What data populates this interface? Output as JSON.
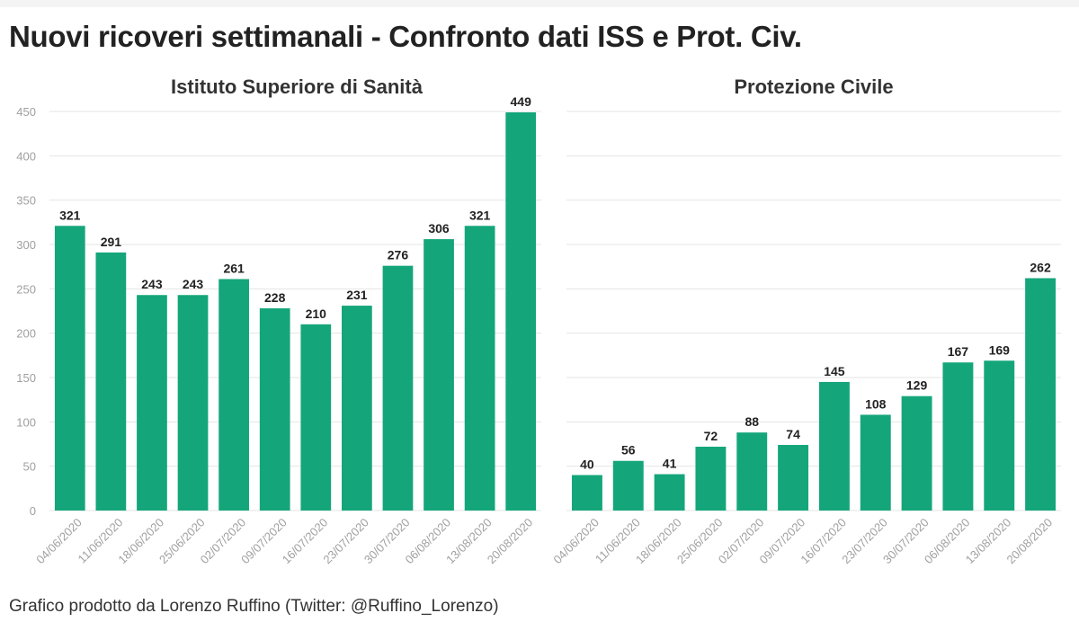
{
  "title": "Nuovi ricoveri settimanali - Confronto dati ISS e Prot. Civ.",
  "footer": "Grafico prodotto da Lorenzo Ruffino (Twitter: @Ruffino_Lorenzo)",
  "colors": {
    "bar": "#14a67a"
  },
  "chart_data": [
    {
      "type": "bar",
      "title": "Istituto Superiore di Sanità",
      "categories": [
        "04/06/2020",
        "11/06/2020",
        "18/06/2020",
        "25/06/2020",
        "02/07/2020",
        "09/07/2020",
        "16/07/2020",
        "23/07/2020",
        "30/07/2020",
        "06/08/2020",
        "13/08/2020",
        "20/08/2020"
      ],
      "values": [
        321,
        291,
        243,
        243,
        261,
        228,
        210,
        231,
        276,
        306,
        321,
        449
      ],
      "ylim": [
        0,
        450
      ],
      "yticks": [
        0,
        50,
        100,
        150,
        200,
        250,
        300,
        350,
        400,
        450
      ],
      "grid": true
    },
    {
      "type": "bar",
      "title": "Protezione Civile",
      "categories": [
        "04/06/2020",
        "11/06/2020",
        "18/06/2020",
        "25/06/2020",
        "02/07/2020",
        "09/07/2020",
        "16/07/2020",
        "23/07/2020",
        "30/07/2020",
        "06/08/2020",
        "13/08/2020",
        "20/08/2020"
      ],
      "values": [
        40,
        56,
        41,
        72,
        88,
        74,
        145,
        108,
        129,
        167,
        169,
        262
      ],
      "ylim": [
        0,
        450
      ],
      "grid": true
    }
  ]
}
